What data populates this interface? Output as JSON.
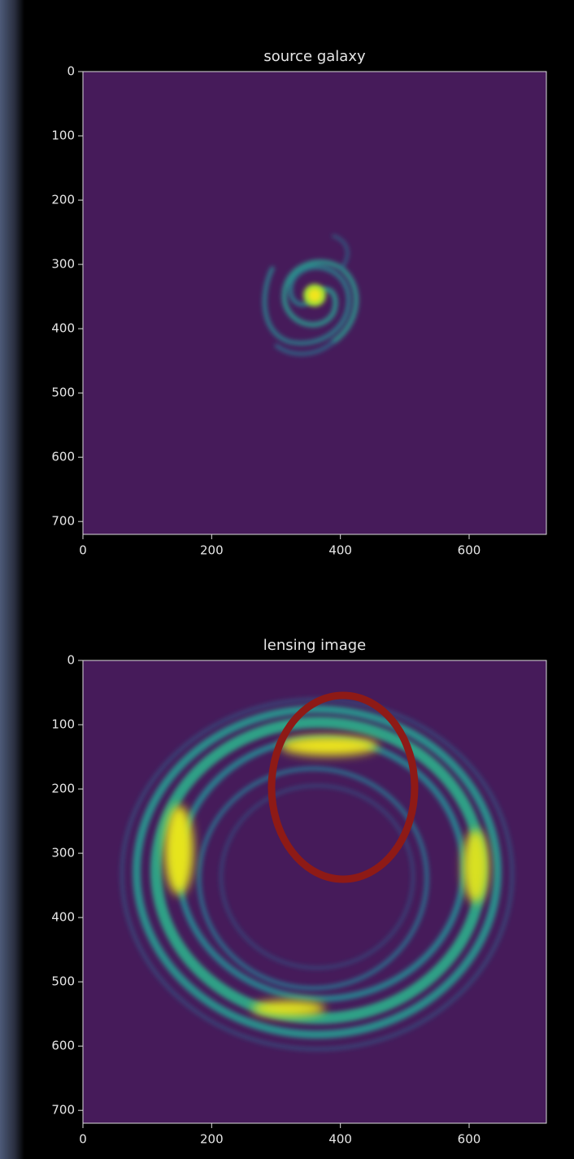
{
  "chart_data": [
    {
      "type": "image",
      "title": "source galaxy",
      "xlim": [
        0,
        720
      ],
      "ylim": [
        720,
        0
      ],
      "xticks": [
        0,
        200,
        400,
        600
      ],
      "yticks": [
        0,
        100,
        200,
        300,
        400,
        500,
        600,
        700
      ],
      "color": "#461b5a"
    },
    {
      "type": "image",
      "title": "lensing image",
      "xlim": [
        0,
        720
      ],
      "ylim": [
        720,
        0
      ],
      "xticks": [
        0,
        200,
        400,
        600
      ],
      "yticks": [
        0,
        100,
        200,
        300,
        400,
        500,
        600,
        700
      ],
      "color": "#461b5a"
    }
  ]
}
